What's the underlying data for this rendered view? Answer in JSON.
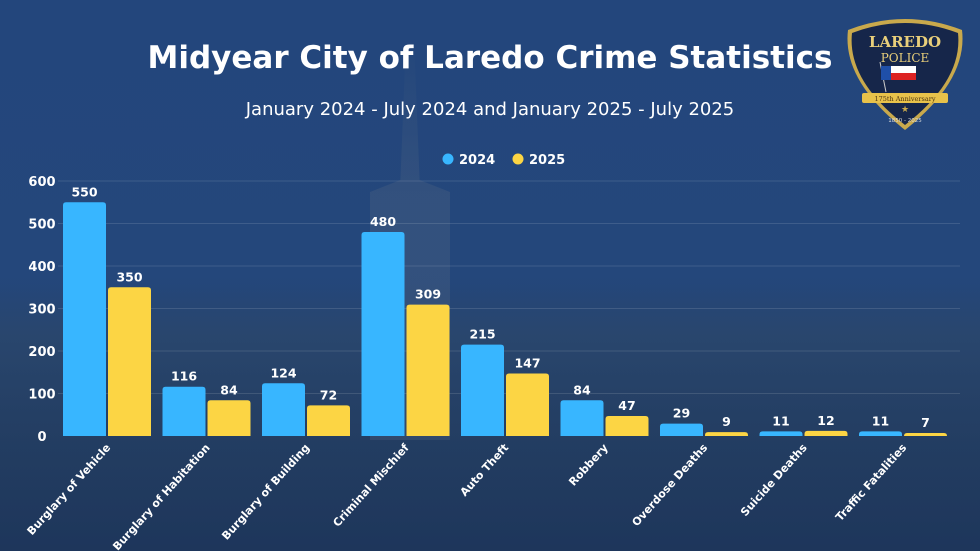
{
  "header": {
    "title": "Midyear City of Laredo Crime Statistics",
    "subtitle": "January 2024 - July 2024 and January 2025 - July 2025"
  },
  "badge": {
    "line1": "LAREDO",
    "line2": "POLICE",
    "ribbon": "175th Anniversary",
    "years": "1850 - 2025"
  },
  "chart_data": {
    "type": "bar",
    "title": "",
    "xlabel": "",
    "ylabel": "",
    "ylim": [
      0,
      600
    ],
    "yticks": [
      0,
      100,
      200,
      300,
      400,
      500,
      600
    ],
    "grid": true,
    "legend_position": "top-center",
    "categories": [
      "Burglary of Vehicle",
      "Burglary of Habitation",
      "Burglary of Building",
      "Criminal Mischief",
      "Auto Theft",
      "Robbery",
      "Overdose Deaths",
      "Suicide Deaths",
      "Traffic Fatalities"
    ],
    "series": [
      {
        "name": "2024",
        "color": "#38b6ff",
        "values": [
          550,
          116,
          124,
          480,
          215,
          84,
          29,
          11,
          11
        ]
      },
      {
        "name": "2025",
        "color": "#fcd544",
        "values": [
          350,
          84,
          72,
          309,
          147,
          47,
          9,
          12,
          7
        ]
      }
    ]
  }
}
